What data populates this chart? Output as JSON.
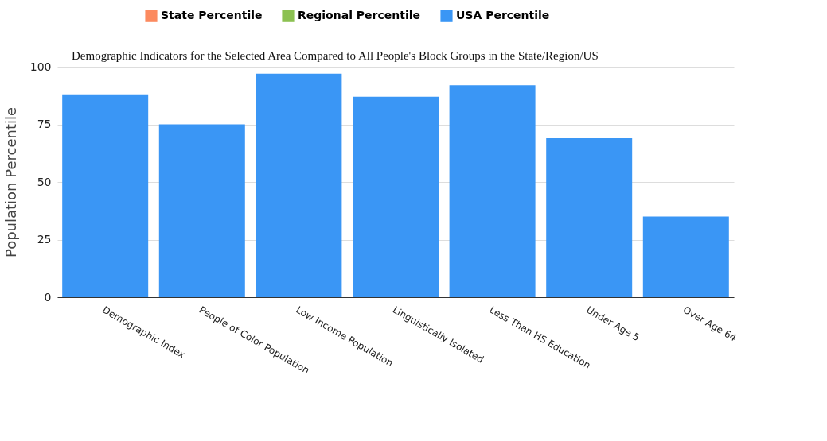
{
  "chart_data": {
    "type": "bar",
    "title": "Demographic Indicators for the Selected Area Compared to All People's Block Groups in the State/Region/US",
    "ylabel": "Population Percentile",
    "categories": [
      "Demographic Index",
      "People of Color Population",
      "Low Income Population",
      "Linguistically Isolated",
      "Less Than HS Education",
      "Under Age 5",
      "Over Age 64"
    ],
    "series": [
      {
        "name": "State Percentile",
        "color": "#fc8a5f",
        "values": [
          null,
          null,
          null,
          null,
          null,
          null,
          null
        ]
      },
      {
        "name": "Regional Percentile",
        "color": "#8cc152",
        "values": [
          null,
          null,
          null,
          null,
          null,
          null,
          null
        ]
      },
      {
        "name": "USA Percentile",
        "color": "#3a96f5",
        "values": [
          88,
          75,
          97,
          87,
          92,
          69,
          35
        ]
      }
    ],
    "ylim": [
      0,
      100
    ],
    "yticks": [
      0,
      25,
      50,
      75,
      100
    ],
    "grid": "y",
    "legend": "top"
  }
}
